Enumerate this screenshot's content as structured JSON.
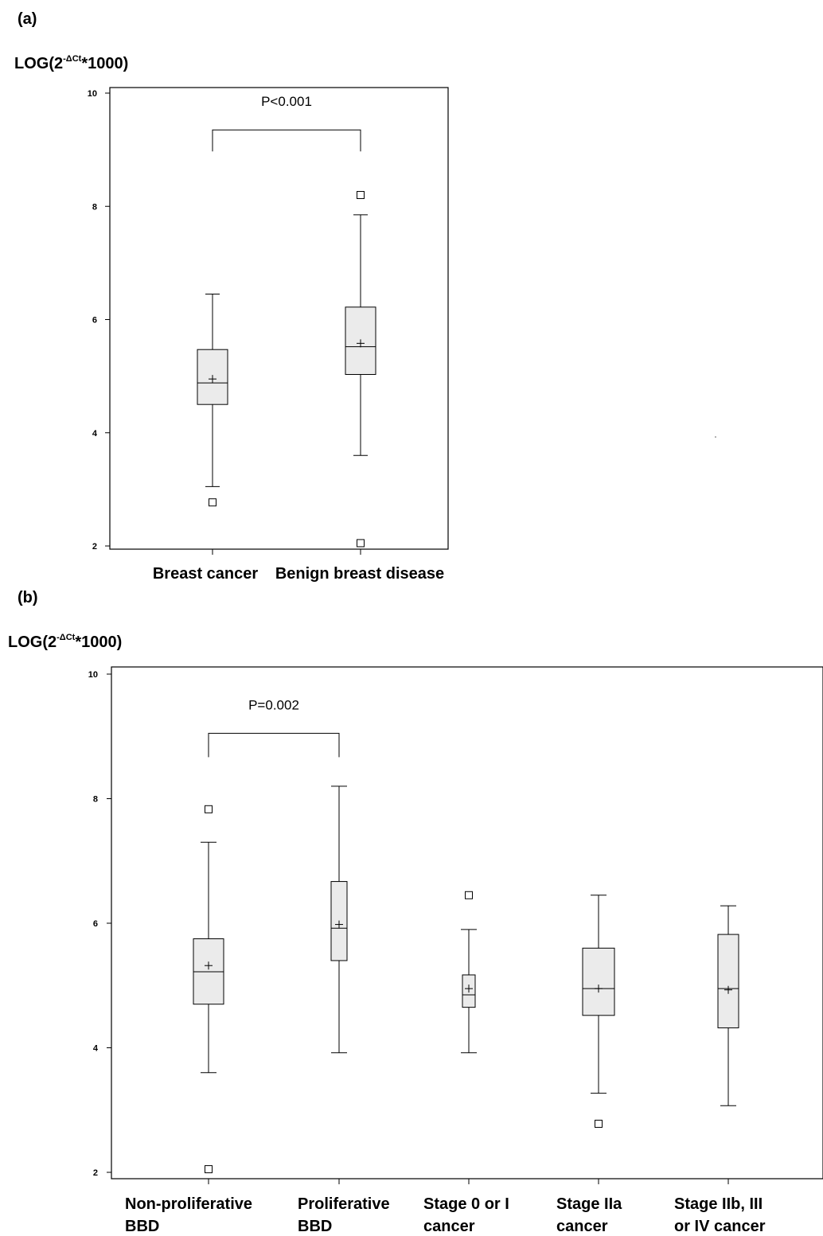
{
  "chart_data": [
    {
      "type": "box",
      "panel_label": "(a)",
      "ylabel": "LOG(2",
      "ylabel_sup": "-ΔCt",
      "ylabel_tail": "*1000)",
      "ylim": [
        2,
        10
      ],
      "yticks": [
        2,
        4,
        6,
        8,
        10
      ],
      "categories": [
        "Breast cancer",
        "Benign breast disease"
      ],
      "boxes": [
        {
          "min": 3.05,
          "q1": 4.5,
          "median": 4.88,
          "q3": 5.47,
          "max": 6.45,
          "mean": 4.95,
          "outliers": [
            2.77
          ]
        },
        {
          "min": 3.6,
          "q1": 5.03,
          "median": 5.52,
          "q3": 6.22,
          "max": 7.85,
          "mean": 5.58,
          "outliers": [
            8.2,
            2.05
          ]
        }
      ],
      "comparison": {
        "from": 0,
        "to": 1,
        "label": "P<0.001",
        "y": 9.35
      }
    },
    {
      "type": "box",
      "panel_label": "(b)",
      "ylabel": "LOG(2",
      "ylabel_sup": "-ΔCt",
      "ylabel_tail": "*1000)",
      "ylim": [
        2,
        10
      ],
      "yticks": [
        2,
        4,
        6,
        8,
        10
      ],
      "categories": [
        [
          "Non-proliferative",
          "BBD"
        ],
        [
          "Proliferative",
          "BBD"
        ],
        [
          "Stage 0 or I",
          "cancer"
        ],
        [
          "Stage IIa",
          "cancer"
        ],
        [
          "Stage IIb, III",
          "or IV cancer"
        ]
      ],
      "boxes": [
        {
          "min": 3.6,
          "q1": 4.7,
          "median": 5.22,
          "q3": 5.75,
          "max": 7.3,
          "mean": 5.32,
          "outliers": [
            7.83,
            2.05
          ]
        },
        {
          "min": 3.92,
          "q1": 5.4,
          "median": 5.92,
          "q3": 6.67,
          "max": 8.2,
          "mean": 5.98,
          "outliers": []
        },
        {
          "min": 3.92,
          "q1": 4.65,
          "median": 4.85,
          "q3": 5.17,
          "max": 5.9,
          "mean": 4.95,
          "outliers": [
            6.45
          ]
        },
        {
          "min": 3.27,
          "q1": 4.52,
          "median": 4.95,
          "q3": 5.6,
          "max": 6.45,
          "mean": 4.95,
          "outliers": [
            2.78
          ]
        },
        {
          "min": 3.07,
          "q1": 4.32,
          "median": 4.95,
          "q3": 5.82,
          "max": 6.28,
          "mean": 4.93,
          "outliers": []
        }
      ],
      "comparison": {
        "from": 0,
        "to": 1,
        "label": "P=0.002",
        "y": 9.05
      }
    }
  ]
}
